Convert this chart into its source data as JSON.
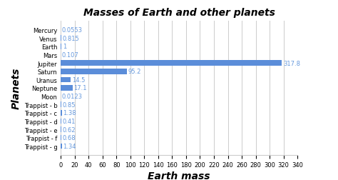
{
  "title": "Masses of Earth and other planets",
  "xlabel": "Earth mass",
  "ylabel": "Planets",
  "categories": [
    "Trappist - g",
    "Trappist - f",
    "Trappist - e",
    "Trappist - d",
    "Trappist - c",
    "Trappist - b",
    "Moon",
    "Neptune",
    "Uranus",
    "Saturn",
    "Jupiter",
    "Mars",
    "Earth",
    "Venus",
    "Mercury"
  ],
  "values": [
    1.34,
    0.68,
    0.62,
    0.41,
    1.38,
    0.85,
    0.0123,
    17.1,
    14.5,
    95.2,
    317.8,
    0.107,
    1,
    0.815,
    0.0553
  ],
  "value_labels": [
    "1.34",
    "0.68",
    "0.62",
    "0.41",
    "1.38",
    "0.85",
    "0.0123",
    "17.1",
    "14.5",
    "95.2",
    "317.8",
    "0.107",
    "1",
    "0.815",
    "0.0553"
  ],
  "bar_color": "#5b8dd9",
  "label_color": "#6699dd",
  "background_color": "#ffffff",
  "grid_color": "#cccccc",
  "xlim": [
    0,
    340
  ],
  "xticks": [
    0,
    20,
    40,
    60,
    80,
    100,
    120,
    140,
    160,
    180,
    200,
    220,
    240,
    260,
    280,
    300,
    320,
    340
  ],
  "title_fontsize": 10,
  "xlabel_fontsize": 10,
  "ylabel_fontsize": 10,
  "tick_fontsize": 6,
  "label_fontsize": 6,
  "bar_height": 0.65
}
